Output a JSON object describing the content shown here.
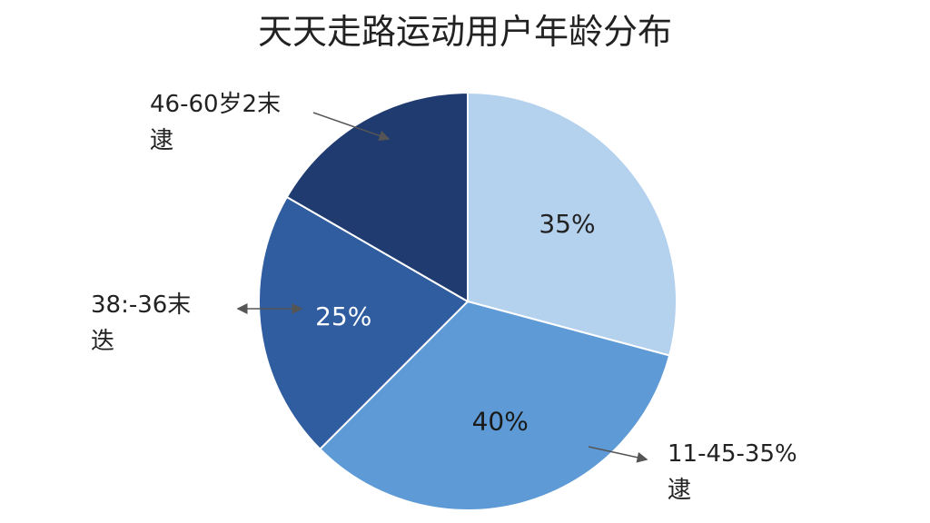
{
  "chart_data": {
    "type": "pie",
    "title": "天天走路运动用户年龄分布",
    "categories": [
      null,
      "11-45-35%\n逮",
      "38:-36末\n迭",
      "46-60岁2末\n逮"
    ],
    "values": [
      35,
      40,
      25,
      20
    ],
    "value_labels": [
      "35%",
      "40%",
      "25%",
      null
    ],
    "colors": [
      "#b4d1ee",
      "#5e9ad6",
      "#2f5d9f",
      "#1f3b70"
    ]
  }
}
